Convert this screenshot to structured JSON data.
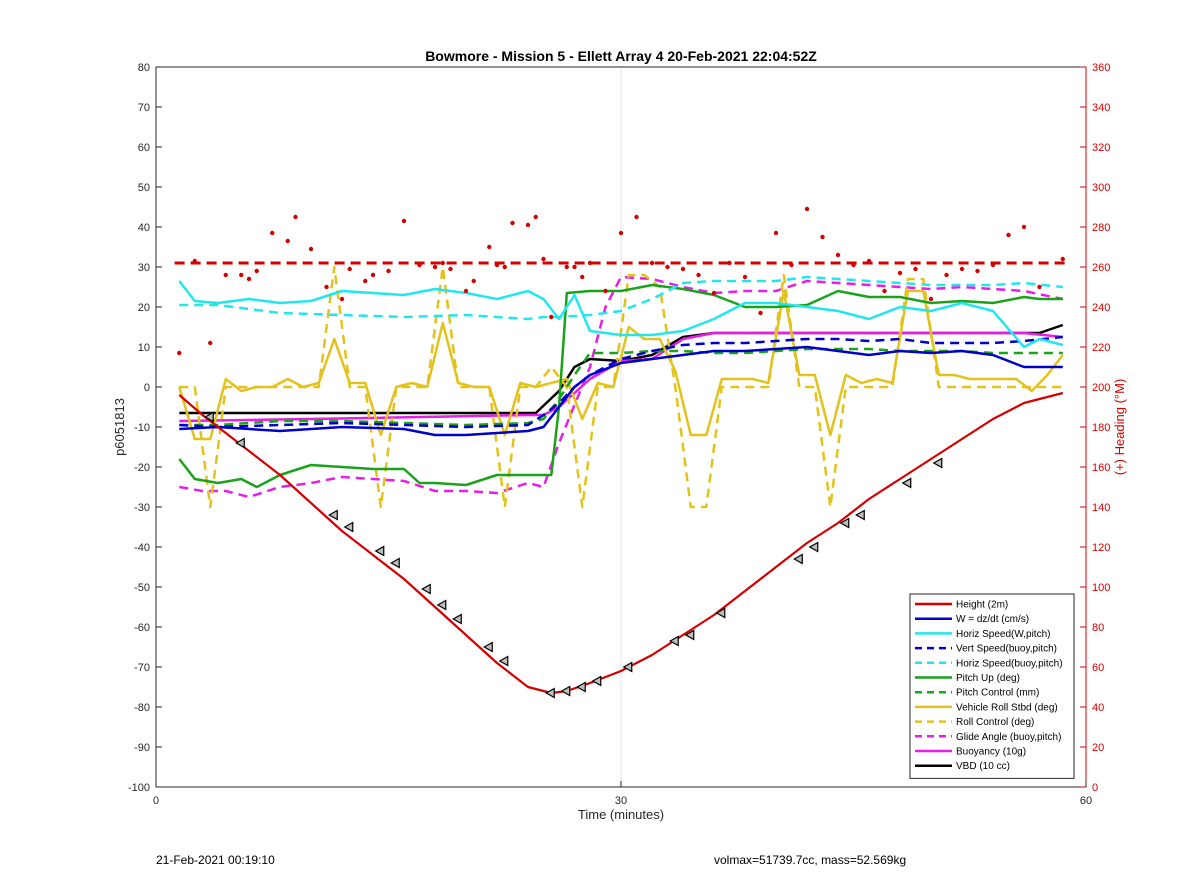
{
  "footer": {
    "timestamp": "21-Feb-2021 00:19:10",
    "info": "volmax=51739.7cc, mass=52.569kg"
  },
  "colors": {
    "red": "#d40000",
    "blue": "#0000c8",
    "cyan": "#22e6ee",
    "green": "#1aa31a",
    "yellow": "#e3c21c",
    "magenta": "#e61ee6",
    "black": "#000000"
  },
  "chart_data": {
    "type": "line",
    "title": "Bowmore - Mission 5 - Ellett Array 4 20-Feb-2021 22:04:52Z",
    "xlabel": "Time (minutes)",
    "ylabel": "p6051813",
    "y2label": "(+) Heading (°M)",
    "xlim": [
      0,
      60
    ],
    "ylim": [
      -100,
      80
    ],
    "y2lim": [
      0,
      360
    ],
    "xticks": [
      "0",
      "30",
      "60"
    ],
    "yticks": [
      "80",
      "70",
      "60",
      "50",
      "40",
      "30",
      "20",
      "10",
      "0",
      "-10",
      "-20",
      "-30",
      "-40",
      "-50",
      "-60",
      "-70",
      "-80",
      "-90",
      "-100"
    ],
    "y2ticks": [
      "360",
      "340",
      "320",
      "300",
      "280",
      "260",
      "240",
      "220",
      "200",
      "180",
      "160",
      "140",
      "120",
      "100",
      "80",
      "60",
      "40",
      "20",
      "0"
    ],
    "grid": "x only at 30",
    "legend_position": "bottom-right",
    "series": [
      {
        "name": "Height (2m)",
        "color": "#d40000",
        "style": "solid",
        "x": [
          1.5,
          3,
          5,
          8,
          10,
          12,
          14,
          16,
          18,
          20,
          22,
          24,
          25.5,
          26.5,
          28,
          30,
          32,
          34,
          36,
          38,
          40,
          42,
          44,
          46,
          48,
          50,
          52,
          54,
          56,
          57,
          58.5
        ],
        "y": [
          -2,
          -7,
          -13,
          -22,
          -29,
          -36,
          -42,
          -48,
          -55,
          -62,
          -69,
          -75,
          -76.5,
          -76,
          -74,
          -71,
          -67,
          -62,
          -57,
          -51,
          -45,
          -39,
          -34,
          -28,
          -23,
          -18,
          -13,
          -8,
          -4,
          -3,
          -1.5
        ]
      },
      {
        "name": "W = dz/dt (cm/s)",
        "color": "#0000c8",
        "style": "solid",
        "x": [
          1.5,
          4,
          8,
          12,
          16,
          18,
          20,
          22,
          24,
          25,
          26,
          27,
          28,
          30,
          32,
          34,
          36,
          38,
          40,
          42,
          44,
          46,
          48,
          50,
          52,
          54,
          56,
          58.5
        ],
        "y": [
          -10.5,
          -10,
          -11,
          -10,
          -10.5,
          -12,
          -12,
          -11.5,
          -11,
          -10,
          -5,
          0,
          3,
          6,
          7,
          8,
          9,
          9,
          9.5,
          10,
          9,
          8,
          9,
          8.5,
          9,
          8,
          5,
          5
        ]
      },
      {
        "name": "Horiz Speed(W,pitch)",
        "color": "#22e6ee",
        "style": "solid",
        "x": [
          1.5,
          2.5,
          4,
          6,
          8,
          10,
          12,
          14,
          16,
          18,
          20,
          22,
          24,
          25,
          26,
          27,
          28,
          30,
          32,
          34,
          36,
          38,
          40,
          42,
          44,
          46,
          48,
          50,
          52,
          54,
          56,
          57,
          58.5
        ],
        "y": [
          26.5,
          21.5,
          21,
          22,
          21,
          21.5,
          24,
          23.5,
          23,
          24.5,
          23.5,
          22,
          24,
          22,
          17,
          23,
          14,
          13,
          13,
          14,
          17,
          21,
          21,
          20,
          19,
          17,
          20,
          19,
          21,
          19,
          10,
          12,
          10.5
        ]
      },
      {
        "name": "Vert Speed(buoy,pitch)",
        "color": "#0000c8",
        "style": "dashed",
        "x": [
          1.5,
          4,
          8,
          12,
          16,
          20,
          24,
          25,
          26,
          27,
          28,
          30,
          32,
          34,
          36,
          38,
          40,
          42,
          44,
          46,
          48,
          50,
          52,
          54,
          56,
          58.5
        ],
        "y": [
          -9.5,
          -10,
          -9.5,
          -9,
          -9.5,
          -10,
          -9.5,
          -7,
          -4,
          0,
          3,
          7,
          9,
          10.5,
          11,
          11,
          11.5,
          12,
          12,
          11.5,
          12,
          11,
          11,
          11,
          11.5,
          12.5
        ]
      },
      {
        "name": "Horiz Speed(buoy,pitch)",
        "color": "#22e6ee",
        "style": "dashed",
        "x": [
          1.5,
          4,
          8,
          12,
          16,
          20,
          24,
          25,
          26,
          28,
          30,
          32,
          34,
          36,
          38,
          40,
          42,
          44,
          46,
          48,
          50,
          52,
          54,
          56,
          58.5
        ],
        "y": [
          20.5,
          20.5,
          18.5,
          18,
          17.5,
          18,
          17,
          17.5,
          17.5,
          18,
          19,
          22,
          26,
          26.5,
          26.5,
          26.5,
          27.5,
          27,
          26.5,
          26,
          25.5,
          25.5,
          25.5,
          26,
          25
        ]
      },
      {
        "name": "Pitch Up (deg)",
        "color": "#1aa31a",
        "style": "solid",
        "x": [
          1.5,
          2.5,
          4,
          5.5,
          6.5,
          8,
          10,
          12,
          14,
          16,
          17,
          18,
          20,
          22,
          24,
          25.5,
          26,
          26.5,
          28,
          30,
          32,
          34,
          36,
          38,
          40,
          42,
          44,
          46,
          48,
          50,
          52,
          54,
          56,
          57,
          58.5
        ],
        "y": [
          -18,
          -23,
          -24,
          -23,
          -25,
          -22,
          -19.5,
          -20,
          -20.5,
          -20.5,
          -24,
          -24,
          -24.5,
          -22,
          -22,
          -22,
          -5,
          23.5,
          24,
          24,
          25.5,
          24.5,
          23,
          20,
          20,
          20.5,
          24,
          22.5,
          22.5,
          21,
          21.5,
          21,
          22.5,
          22,
          22
        ]
      },
      {
        "name": "Pitch Control (mm)",
        "color": "#1aa31a",
        "style": "dashed",
        "x": [
          1.5,
          4,
          8,
          12,
          16,
          20,
          24,
          25,
          26,
          27,
          28,
          30,
          32,
          34,
          36,
          38,
          40,
          42,
          44,
          46,
          48,
          50,
          52,
          54,
          56,
          58.5
        ],
        "y": [
          -9.5,
          -9.5,
          -8.5,
          -8.5,
          -9,
          -9.5,
          -9,
          -8,
          -3,
          3,
          8.5,
          8.5,
          9,
          9,
          8.5,
          8.5,
          9,
          9.5,
          9.5,
          9.5,
          9,
          9,
          9,
          8.5,
          8.5,
          8.5
        ]
      },
      {
        "name": "Vehicle Roll Stbd (deg)",
        "color": "#e3c21c",
        "style": "solid",
        "x": [
          1.5,
          2.5,
          3.5,
          4.5,
          5.5,
          6.5,
          7.5,
          8.5,
          9.5,
          10.5,
          11.5,
          12.5,
          13.5,
          14.5,
          15.5,
          16.5,
          17.5,
          18.5,
          19.5,
          20.5,
          21.5,
          22.5,
          23.5,
          24.5,
          25.5,
          26.5,
          27.5,
          28.5,
          29.5,
          30.5,
          31.5,
          32.5,
          33.5,
          34.5,
          35.5,
          36.5,
          37.5,
          38.5,
          39.5,
          40.5,
          41.5,
          42.5,
          43.5,
          44.5,
          45.5,
          46.5,
          47.5,
          48.5,
          49.5,
          50.5,
          51.5,
          52.5,
          53.5,
          54.5,
          55.5,
          56.5,
          57.5,
          58.5
        ],
        "y": [
          0,
          -13,
          -13,
          2,
          -1,
          0,
          0,
          2,
          0,
          1,
          12,
          1,
          1,
          -12,
          0,
          1,
          0,
          16,
          1,
          0,
          0,
          -12,
          1,
          0,
          1,
          2,
          -8,
          1,
          0,
          15,
          12,
          12,
          4,
          -12,
          -12,
          2,
          2,
          2,
          1,
          24,
          3,
          3,
          -12,
          3,
          1,
          2,
          1,
          24,
          24,
          3,
          3,
          2,
          2,
          2,
          2,
          -1,
          3,
          8
        ]
      },
      {
        "name": "Roll Control (deg)",
        "color": "#e3c21c",
        "style": "dashed",
        "x": [
          1.5,
          2.5,
          3.5,
          4.5,
          5.5,
          6.5,
          7.5,
          8.5,
          9.5,
          10.5,
          11.5,
          12.5,
          13.5,
          14.5,
          15.5,
          16.5,
          17.5,
          18.5,
          19.5,
          20.5,
          21.5,
          22.5,
          23.5,
          24.5,
          25.5,
          26.5,
          27.5,
          28.5,
          29.5,
          30.5,
          31.5,
          32.5,
          33.5,
          34.5,
          35.5,
          36.5,
          37.5,
          38.5,
          39.5,
          40.5,
          41.5,
          42.5,
          43.5,
          44.5,
          45.5,
          46.5,
          47.5,
          48.5,
          49.5,
          50.5,
          51.5,
          52.5,
          53.5,
          54.5,
          55.5,
          56.5,
          57.5,
          58.5
        ],
        "y": [
          0,
          0,
          -30,
          0,
          0,
          0,
          0,
          0,
          0,
          0,
          30,
          0,
          0,
          -30,
          0,
          0,
          0,
          30,
          0,
          0,
          0,
          -30,
          0,
          0,
          5,
          0,
          -30,
          0,
          0,
          28,
          28,
          25,
          0,
          -30,
          -30,
          0,
          0,
          0,
          0,
          28,
          0,
          0,
          -30,
          0,
          0,
          0,
          0,
          27,
          27,
          0,
          0,
          0,
          0,
          0,
          0,
          0,
          0,
          0
        ]
      },
      {
        "name": "Glide Angle (buoy,pitch)",
        "color": "#e61ee6",
        "style": "dashed",
        "x": [
          1.5,
          3,
          4.5,
          6,
          8,
          10,
          12,
          14,
          16,
          18,
          20,
          22,
          24,
          25,
          26,
          28,
          29,
          30,
          32,
          34,
          36,
          38,
          40,
          42,
          44,
          46,
          48,
          50,
          52,
          54,
          56,
          58.5
        ],
        "y": [
          -25,
          -26,
          -26,
          -27.5,
          -25,
          -24,
          -22.5,
          -23,
          -23.5,
          -26,
          -26,
          -26.5,
          -24,
          -25,
          -14,
          5,
          20,
          27.5,
          27,
          25,
          23.5,
          24,
          24,
          26.5,
          26,
          25.5,
          25,
          24.5,
          25,
          24.5,
          24,
          22
        ]
      },
      {
        "name": "Buoyancy (10g)",
        "color": "#e61ee6",
        "style": "solid",
        "x": [
          1.5,
          10,
          24,
          25,
          26,
          28,
          30,
          32,
          34,
          36,
          40,
          56,
          58.5
        ],
        "y": [
          -8.5,
          -8,
          -7,
          -7,
          -5,
          2,
          6.5,
          7,
          12,
          13.5,
          13.5,
          13.5,
          12.5
        ]
      },
      {
        "name": "VBD (10 cc)",
        "color": "#000000",
        "style": "solid",
        "x": [
          1.5,
          10,
          24,
          24.5,
          26,
          27,
          28,
          30,
          32,
          34,
          36,
          40,
          56,
          57,
          58.5
        ],
        "y": [
          -6.5,
          -6.5,
          -6.5,
          -6.5,
          -1,
          5,
          7,
          6.5,
          8,
          12.5,
          13.5,
          13.5,
          13.5,
          13.5,
          15.5
        ]
      }
    ],
    "heading_target_deg": 262,
    "heading_points": {
      "x": [
        1.5,
        2.5,
        3.5,
        4.5,
        5.5,
        6,
        6.5,
        7.5,
        8.5,
        9,
        10,
        11,
        12,
        12.5,
        13.5,
        14,
        15,
        16,
        17,
        18,
        18.5,
        19,
        20,
        20.5,
        21.5,
        22,
        22.5,
        23,
        24,
        24.5,
        25,
        25.5,
        26.5,
        27,
        27.5,
        28,
        29,
        30,
        31,
        32,
        33,
        34,
        35,
        36,
        37,
        38,
        39,
        40,
        41,
        42,
        43,
        44,
        45,
        46,
        47,
        48,
        49,
        50,
        51,
        52,
        53,
        54,
        55,
        56,
        57,
        58.5
      ],
      "y": [
        217,
        263,
        222,
        256,
        256,
        254,
        258,
        277,
        273,
        285,
        269,
        250,
        244,
        259,
        253,
        256,
        258,
        283,
        261,
        260,
        262,
        259,
        248,
        253,
        270,
        261,
        260,
        282,
        281,
        285,
        264,
        235,
        260,
        260,
        255,
        262,
        248,
        277,
        285,
        262,
        260,
        259,
        256,
        247,
        262,
        255,
        237,
        277,
        261,
        289,
        275,
        266,
        261,
        263,
        248,
        257,
        259,
        244,
        256,
        259,
        258,
        261,
        276,
        280,
        250,
        264
      ]
    },
    "markers": {
      "x": [
        3.5,
        5.5,
        11.5,
        12.5,
        14.5,
        15.5,
        17.5,
        18.5,
        19.5,
        21.5,
        22.5,
        25.5,
        26.5,
        27.5,
        28.5,
        30.5,
        33.5,
        34.5,
        36.5,
        41.5,
        42.5,
        44.5,
        45.5,
        48.5,
        50.5
      ],
      "y": [
        -7.5,
        -14,
        -32,
        -35,
        -41,
        -44,
        -50.5,
        -54.5,
        -58,
        -65,
        -68.5,
        -76.5,
        -76,
        -75,
        -73.5,
        -70,
        -63.5,
        -62,
        -56.5,
        -43,
        -40,
        -34,
        -32,
        -24,
        -19
      ]
    }
  }
}
